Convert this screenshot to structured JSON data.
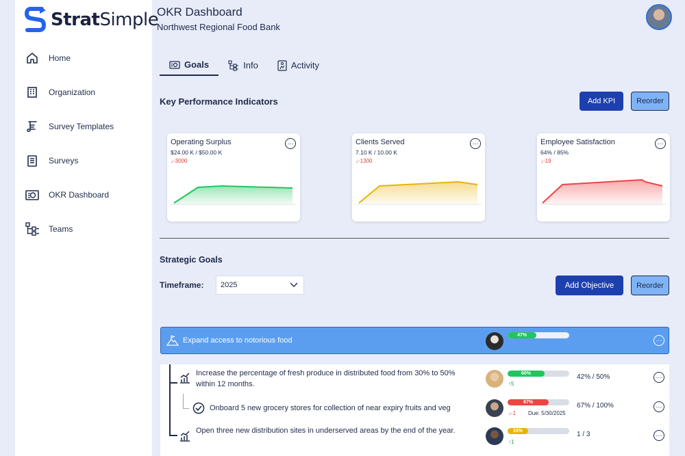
{
  "brand": {
    "name_bold": "Strat",
    "name_rest": "Simple"
  },
  "sidebar": {
    "items": [
      {
        "label": "Home",
        "icon": "home-icon"
      },
      {
        "label": "Organization",
        "icon": "building-icon"
      },
      {
        "label": "Survey Templates",
        "icon": "scroll-icon"
      },
      {
        "label": "Surveys",
        "icon": "clipboard-icon"
      },
      {
        "label": "OKR Dashboard",
        "icon": "dashboard-icon"
      },
      {
        "label": "Teams",
        "icon": "hierarchy-icon"
      }
    ]
  },
  "header": {
    "title": "OKR Dashboard",
    "subtitle": "Northwest Regional Food Bank"
  },
  "tabs": [
    {
      "label": "Goals",
      "active": true
    },
    {
      "label": "Info",
      "active": false
    },
    {
      "label": "Activity",
      "active": false
    }
  ],
  "kpi_section": {
    "title": "Key Performance Indicators",
    "add_label": "Add KPI",
    "reorder_label": "Reorder"
  },
  "kpis": [
    {
      "name": "Operating Surplus",
      "value": "$24.00 K / $50.00 K",
      "delta": "↓-3000",
      "color": "#22c55e"
    },
    {
      "name": "Clients Served",
      "value": "7.10 K / 10.00 K",
      "delta": "↓-1300",
      "color": "#eab308"
    },
    {
      "name": "Employee Satisfaction",
      "value": "64% / 85%",
      "delta": "↓-19",
      "color": "#ef4444"
    }
  ],
  "goals_section": {
    "title": "Strategic Goals",
    "timeframe_label": "Timeframe:",
    "timeframe_value": "2025",
    "add_label": "Add Objective",
    "reorder_label": "Reorder"
  },
  "objective": {
    "title": "Expand access to notorious food",
    "progress_label": "47%",
    "progress": 0.47,
    "color": "#22c55e"
  },
  "key_results": [
    {
      "text": "Increase the percentage of fresh produce in distributed food from 30% to 50% within 12 months.",
      "progress_label": "60%",
      "progress": 0.6,
      "color": "#22c55e",
      "delta": "↑5",
      "metric": "42% / 50%"
    },
    {
      "text": "Onboard 5 new grocery stores for collection of near expiry fruits and veg",
      "progress_label": "67%",
      "progress": 0.67,
      "color": "#ef4444",
      "delta": "↓-1",
      "due": "Due: 5/30/2025",
      "metric": "67% / 100%"
    },
    {
      "text": "Open three new distribution sites in underserved areas by the end of the year.",
      "progress_label": "33%",
      "progress": 0.33,
      "color": "#eab308",
      "delta": "↑1",
      "metric": "1 / 3"
    }
  ]
}
